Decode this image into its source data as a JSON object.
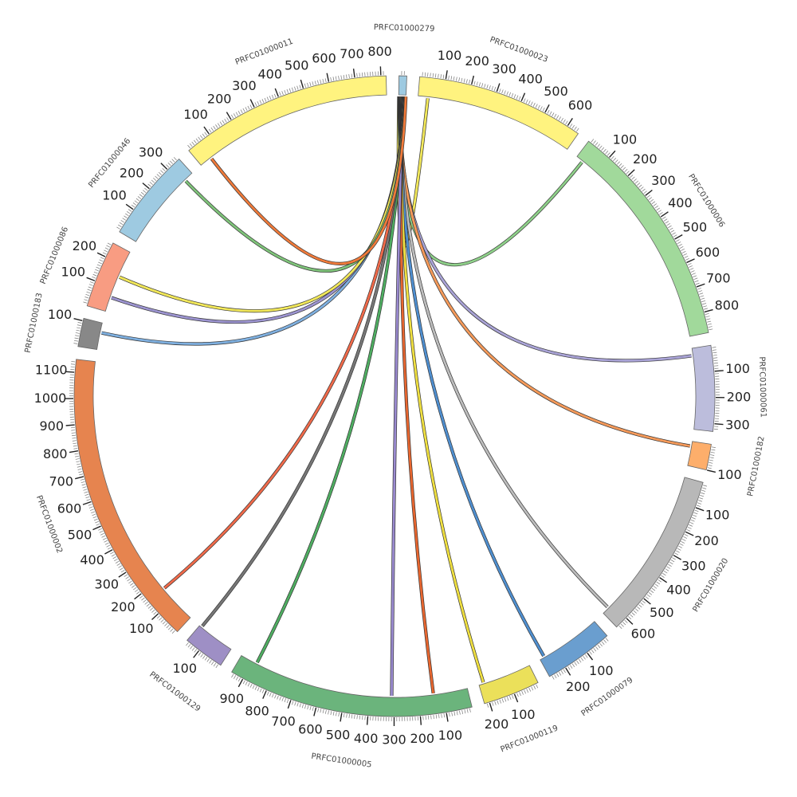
{
  "chart_data": {
    "type": "chord",
    "minor_tick_step": 10,
    "segments": [
      {
        "name": "PRFC01000279",
        "length": 30,
        "color": "#9ecae1",
        "ticks": []
      },
      {
        "name": "PRFC01000023",
        "length": 650,
        "color": "#fff37f",
        "ticks": [
          100,
          200,
          300,
          400,
          500,
          600
        ]
      },
      {
        "name": "PRFC01000006",
        "length": 880,
        "color": "#a1d99b",
        "ticks": [
          100,
          200,
          300,
          400,
          500,
          600,
          700,
          800
        ]
      },
      {
        "name": "PRFC01000061",
        "length": 330,
        "color": "#bcbddc",
        "ticks": [
          100,
          200,
          300
        ]
      },
      {
        "name": "PRFC01000182",
        "length": 100,
        "color": "#fdae6b",
        "ticks": [
          100
        ]
      },
      {
        "name": "PRFC01000020",
        "length": 650,
        "color": "#b8b8b8",
        "ticks": [
          100,
          200,
          300,
          400,
          500,
          600
        ]
      },
      {
        "name": "PRFC01000079",
        "length": 270,
        "color": "#6a9ecf",
        "ticks": [
          100,
          200
        ]
      },
      {
        "name": "PRFC01000119",
        "length": 220,
        "color": "#ebe05a",
        "ticks": [
          100,
          200
        ]
      },
      {
        "name": "PRFC01000005",
        "length": 950,
        "color": "#6bb47c",
        "ticks": [
          100,
          200,
          300,
          400,
          500,
          600,
          700,
          800,
          900
        ]
      },
      {
        "name": "PRFC01000129",
        "length": 160,
        "color": "#9e8fc5",
        "ticks": [
          100
        ]
      },
      {
        "name": "PRFC01000002",
        "length": 1150,
        "color": "#e6844f",
        "ticks": [
          100,
          200,
          300,
          400,
          500,
          600,
          700,
          800,
          900,
          1000,
          1100
        ]
      },
      {
        "name": "PRFC01000183",
        "length": 110,
        "color": "#888888",
        "ticks": [
          100
        ]
      },
      {
        "name": "PRFC01000086",
        "length": 260,
        "color": "#f89c82",
        "ticks": [
          100,
          200
        ]
      },
      {
        "name": "PRFC01000046",
        "length": 360,
        "color": "#9ecae1",
        "ticks": [
          100,
          200,
          300
        ]
      },
      {
        "name": "PRFC01000011",
        "length": 820,
        "color": "#fff37f",
        "ticks": [
          100,
          200,
          300,
          400,
          500,
          600,
          700,
          800
        ]
      }
    ],
    "links": [
      {
        "target": 1,
        "position": 40,
        "color": "#f2e85a"
      },
      {
        "target": 2,
        "position": 30,
        "color": "#8fd18a"
      },
      {
        "target": 3,
        "position": 30,
        "color": "#a9a3d6"
      },
      {
        "target": 4,
        "position": 20,
        "color": "#f59a5a"
      },
      {
        "target": 5,
        "position": 620,
        "color": "#bdbdbd"
      },
      {
        "target": 6,
        "position": 250,
        "color": "#4f8fd0"
      },
      {
        "target": 7,
        "position": 200,
        "color": "#f0e040"
      },
      {
        "target": 8,
        "position": 140,
        "color": "#e8662f"
      },
      {
        "target": 8,
        "position": 310,
        "color": "#9a8ad0"
      },
      {
        "target": 8,
        "position": 880,
        "color": "#4fae62"
      },
      {
        "target": 9,
        "position": 150,
        "color": "#777777"
      },
      {
        "target": 10,
        "position": 160,
        "color": "#f06a4a"
      },
      {
        "target": 11,
        "position": 70,
        "color": "#7fb0e0"
      },
      {
        "target": 12,
        "position": 60,
        "color": "#9c94d0"
      },
      {
        "target": 12,
        "position": 150,
        "color": "#f2e85a"
      },
      {
        "target": 13,
        "position": 320,
        "color": "#7fc47a"
      },
      {
        "target": 14,
        "position": 50,
        "color": "#f07a3a"
      }
    ]
  }
}
